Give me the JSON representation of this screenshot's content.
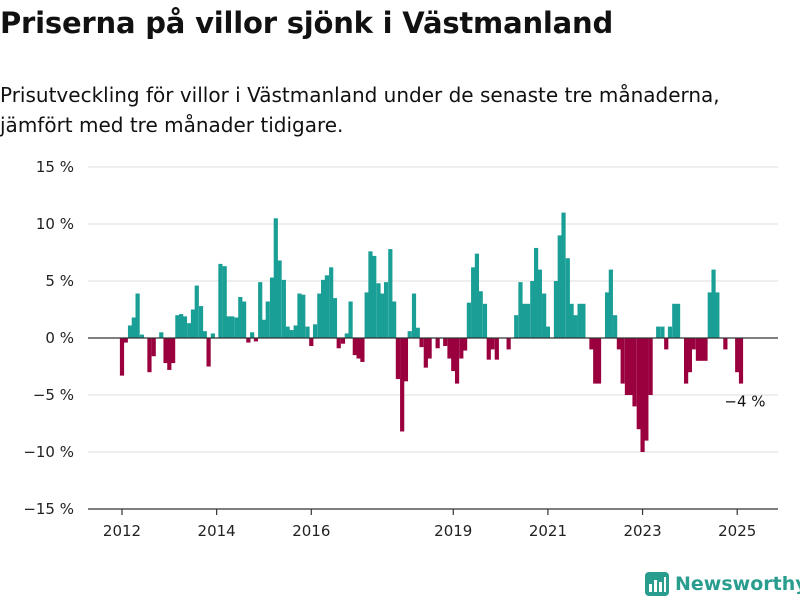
{
  "chart_data": {
    "type": "bar",
    "title": "Priserna på villor sjönk i Västmanland",
    "subtitle": "Prisutveckling för villor i Västmanland under de senaste tre månaderna, jämfört med tre månader tidigare.",
    "xlabel": "",
    "ylabel": "",
    "ylim": [
      -15,
      15
    ],
    "y_ticks": [
      15,
      10,
      5,
      0,
      -5,
      -10,
      -15
    ],
    "y_tick_labels": [
      "15 %",
      "10 %",
      "5 %",
      "0 %",
      "−5 %",
      "−10 %",
      "−15 %"
    ],
    "x_ticks": [
      2012,
      2014,
      2016,
      2019,
      2021,
      2023,
      2025
    ],
    "x_tick_labels": [
      "2012",
      "2014",
      "2016",
      "2019",
      "2021",
      "2023",
      "2025"
    ],
    "grid": true,
    "legend": "none",
    "colors": {
      "positive": "#1a9f96",
      "negative": "#99003d",
      "grid": "#dddddd",
      "axis": "#333333"
    },
    "bars": [
      {
        "t": 2012.0,
        "v": -3.3
      },
      {
        "t": 2012.08,
        "v": -0.4
      },
      {
        "t": 2012.17,
        "v": 1.1
      },
      {
        "t": 2012.25,
        "v": 1.8
      },
      {
        "t": 2012.33,
        "v": 3.9
      },
      {
        "t": 2012.42,
        "v": 0.3
      },
      {
        "t": 2012.58,
        "v": -3.0
      },
      {
        "t": 2012.67,
        "v": -1.6
      },
      {
        "t": 2012.83,
        "v": 0.5
      },
      {
        "t": 2012.92,
        "v": -2.2
      },
      {
        "t": 2013.0,
        "v": -2.8
      },
      {
        "t": 2013.08,
        "v": -2.2
      },
      {
        "t": 2013.17,
        "v": 2.0
      },
      {
        "t": 2013.25,
        "v": 2.1
      },
      {
        "t": 2013.33,
        "v": 1.9
      },
      {
        "t": 2013.42,
        "v": 1.3
      },
      {
        "t": 2013.5,
        "v": 2.5
      },
      {
        "t": 2013.58,
        "v": 4.6
      },
      {
        "t": 2013.67,
        "v": 2.8
      },
      {
        "t": 2013.75,
        "v": 0.6
      },
      {
        "t": 2013.83,
        "v": -2.5
      },
      {
        "t": 2013.92,
        "v": 0.4
      },
      {
        "t": 2014.08,
        "v": 6.5
      },
      {
        "t": 2014.17,
        "v": 6.3
      },
      {
        "t": 2014.25,
        "v": 1.9
      },
      {
        "t": 2014.33,
        "v": 1.9
      },
      {
        "t": 2014.42,
        "v": 1.8
      },
      {
        "t": 2014.5,
        "v": 3.6
      },
      {
        "t": 2014.58,
        "v": 3.2
      },
      {
        "t": 2014.67,
        "v": -0.4
      },
      {
        "t": 2014.75,
        "v": 0.5
      },
      {
        "t": 2014.83,
        "v": -0.3
      },
      {
        "t": 2014.92,
        "v": 4.9
      },
      {
        "t": 2015.0,
        "v": 1.6
      },
      {
        "t": 2015.08,
        "v": 3.2
      },
      {
        "t": 2015.17,
        "v": 5.3
      },
      {
        "t": 2015.25,
        "v": 10.5
      },
      {
        "t": 2015.33,
        "v": 6.8
      },
      {
        "t": 2015.42,
        "v": 5.1
      },
      {
        "t": 2015.5,
        "v": 1.0
      },
      {
        "t": 2015.58,
        "v": 0.7
      },
      {
        "t": 2015.67,
        "v": 1.1
      },
      {
        "t": 2015.75,
        "v": 3.9
      },
      {
        "t": 2015.83,
        "v": 3.8
      },
      {
        "t": 2015.92,
        "v": 1.0
      },
      {
        "t": 2016.0,
        "v": -0.7
      },
      {
        "t": 2016.08,
        "v": 1.2
      },
      {
        "t": 2016.17,
        "v": 3.9
      },
      {
        "t": 2016.25,
        "v": 5.1
      },
      {
        "t": 2016.33,
        "v": 5.5
      },
      {
        "t": 2016.42,
        "v": 6.2
      },
      {
        "t": 2016.5,
        "v": 3.5
      },
      {
        "t": 2016.58,
        "v": -0.9
      },
      {
        "t": 2016.67,
        "v": -0.5
      },
      {
        "t": 2016.75,
        "v": 0.4
      },
      {
        "t": 2016.83,
        "v": 3.2
      },
      {
        "t": 2016.92,
        "v": -1.5
      },
      {
        "t": 2017.0,
        "v": -1.8
      },
      {
        "t": 2017.08,
        "v": -2.1
      },
      {
        "t": 2017.17,
        "v": 4.0
      },
      {
        "t": 2017.25,
        "v": 7.6
      },
      {
        "t": 2017.33,
        "v": 7.2
      },
      {
        "t": 2017.42,
        "v": 4.8
      },
      {
        "t": 2017.5,
        "v": 3.9
      },
      {
        "t": 2017.58,
        "v": 4.9
      },
      {
        "t": 2017.67,
        "v": 7.8
      },
      {
        "t": 2017.75,
        "v": 3.2
      },
      {
        "t": 2017.83,
        "v": -3.6
      },
      {
        "t": 2017.92,
        "v": -8.2
      },
      {
        "t": 2018.0,
        "v": -3.8
      },
      {
        "t": 2018.08,
        "v": 0.6
      },
      {
        "t": 2018.17,
        "v": 3.9
      },
      {
        "t": 2018.25,
        "v": 0.9
      },
      {
        "t": 2018.33,
        "v": -0.8
      },
      {
        "t": 2018.42,
        "v": -2.6
      },
      {
        "t": 2018.5,
        "v": -1.8
      },
      {
        "t": 2018.67,
        "v": -0.9
      },
      {
        "t": 2018.83,
        "v": -0.7
      },
      {
        "t": 2018.92,
        "v": -1.8
      },
      {
        "t": 2019.0,
        "v": -2.9
      },
      {
        "t": 2019.08,
        "v": -4.0
      },
      {
        "t": 2019.17,
        "v": -1.8
      },
      {
        "t": 2019.25,
        "v": -1.1
      },
      {
        "t": 2019.33,
        "v": 3.1
      },
      {
        "t": 2019.42,
        "v": 6.2
      },
      {
        "t": 2019.5,
        "v": 7.4
      },
      {
        "t": 2019.58,
        "v": 4.1
      },
      {
        "t": 2019.67,
        "v": 3.0
      },
      {
        "t": 2019.75,
        "v": -1.9
      },
      {
        "t": 2019.83,
        "v": -1.0
      },
      {
        "t": 2019.92,
        "v": -1.9
      },
      {
        "t": 2020.17,
        "v": -1.0
      },
      {
        "t": 2020.33,
        "v": 2.0
      },
      {
        "t": 2020.42,
        "v": 4.9
      },
      {
        "t": 2020.5,
        "v": 3.0
      },
      {
        "t": 2020.58,
        "v": 3.0
      },
      {
        "t": 2020.67,
        "v": 5.0
      },
      {
        "t": 2020.75,
        "v": 7.9
      },
      {
        "t": 2020.83,
        "v": 6.0
      },
      {
        "t": 2020.92,
        "v": 3.9
      },
      {
        "t": 2021.0,
        "v": 1.0
      },
      {
        "t": 2021.17,
        "v": 5.0
      },
      {
        "t": 2021.25,
        "v": 9.0
      },
      {
        "t": 2021.33,
        "v": 11.0
      },
      {
        "t": 2021.42,
        "v": 7.0
      },
      {
        "t": 2021.5,
        "v": 3.0
      },
      {
        "t": 2021.58,
        "v": 2.0
      },
      {
        "t": 2021.67,
        "v": 3.0
      },
      {
        "t": 2021.75,
        "v": 3.0
      },
      {
        "t": 2021.92,
        "v": -1.0
      },
      {
        "t": 2022.0,
        "v": -4.0
      },
      {
        "t": 2022.08,
        "v": -4.0
      },
      {
        "t": 2022.25,
        "v": 4.0
      },
      {
        "t": 2022.33,
        "v": 6.0
      },
      {
        "t": 2022.42,
        "v": 2.0
      },
      {
        "t": 2022.5,
        "v": -1.0
      },
      {
        "t": 2022.58,
        "v": -4.0
      },
      {
        "t": 2022.67,
        "v": -5.0
      },
      {
        "t": 2022.75,
        "v": -5.0
      },
      {
        "t": 2022.83,
        "v": -6.0
      },
      {
        "t": 2022.92,
        "v": -8.0
      },
      {
        "t": 2023.0,
        "v": -10.0
      },
      {
        "t": 2023.08,
        "v": -9.0
      },
      {
        "t": 2023.17,
        "v": -5.0
      },
      {
        "t": 2023.33,
        "v": 1.0
      },
      {
        "t": 2023.42,
        "v": 1.0
      },
      {
        "t": 2023.5,
        "v": -1.0
      },
      {
        "t": 2023.58,
        "v": 1.0
      },
      {
        "t": 2023.67,
        "v": 3.0
      },
      {
        "t": 2023.75,
        "v": 3.0
      },
      {
        "t": 2023.92,
        "v": -4.0
      },
      {
        "t": 2024.0,
        "v": -3.0
      },
      {
        "t": 2024.08,
        "v": -1.0
      },
      {
        "t": 2024.17,
        "v": -2.0
      },
      {
        "t": 2024.25,
        "v": -2.0
      },
      {
        "t": 2024.33,
        "v": -2.0
      },
      {
        "t": 2024.42,
        "v": 4.0
      },
      {
        "t": 2024.5,
        "v": 6.0
      },
      {
        "t": 2024.58,
        "v": 4.0
      },
      {
        "t": 2024.75,
        "v": -1.0
      },
      {
        "t": 2025.0,
        "v": -3.0
      },
      {
        "t": 2025.08,
        "v": -4.0
      }
    ],
    "annotation": {
      "t": 2025.08,
      "v": -4.0,
      "text": "−4 %"
    }
  },
  "brand": {
    "name": "Newsworthy",
    "icon": "bar-chart-logo-icon",
    "color": "#2a9d8f"
  }
}
